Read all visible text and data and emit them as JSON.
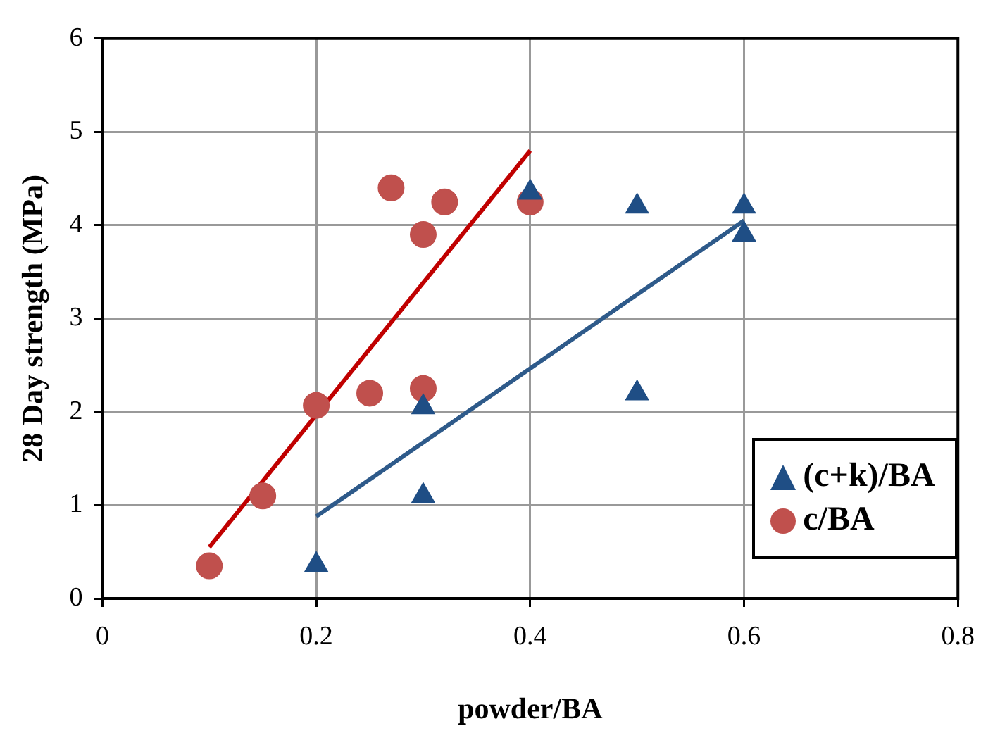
{
  "chart_data": {
    "type": "scatter",
    "xlabel": "powder/BA",
    "ylabel": "28 Day strength (MPa)",
    "xlim": [
      0,
      0.8
    ],
    "xticks": [
      0,
      0.2,
      0.4,
      0.6,
      0.8
    ],
    "ylim": [
      0,
      6
    ],
    "yticks": [
      0,
      1,
      2,
      3,
      4,
      5,
      6
    ],
    "grid": true,
    "legend": "bottom right",
    "series": [
      {
        "name": "(c+k)/BA",
        "color": "#1f4e85",
        "marker": "triangle",
        "x": [
          0.2,
          0.3,
          0.3,
          0.4,
          0.5,
          0.5,
          0.6,
          0.6
        ],
        "values": [
          0.36,
          2.05,
          1.1,
          4.35,
          4.2,
          2.2,
          4.2,
          3.9
        ]
      },
      {
        "name": "c/BA",
        "color": "#c0504d",
        "marker": "circle",
        "x": [
          0.1,
          0.15,
          0.2,
          0.25,
          0.27,
          0.3,
          0.3,
          0.32,
          0.4
        ],
        "values": [
          0.35,
          1.1,
          2.07,
          2.2,
          4.4,
          3.9,
          2.25,
          4.25,
          4.25
        ]
      },
      {
        "type": "line",
        "color": "#c00000",
        "marker": "none",
        "x": [
          0.1,
          0.4
        ],
        "values": [
          0.55,
          4.8
        ]
      },
      {
        "type": "line",
        "color": "#2e5a8a",
        "marker": "none",
        "x": [
          0.2,
          0.6
        ],
        "values": [
          0.88,
          4.05
        ]
      }
    ]
  }
}
